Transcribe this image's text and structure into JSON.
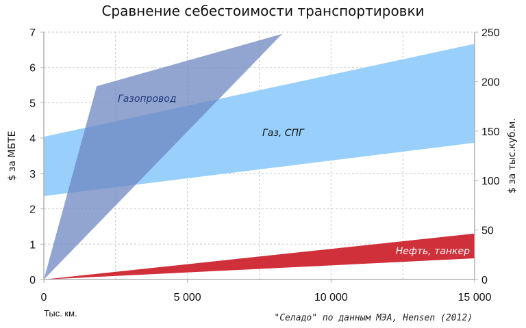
{
  "chart_data": {
    "type": "area",
    "title": "Сравнение себестоимости транспортировки",
    "xlabel": "Тыс. км.",
    "ylabel": "$ за МБТЕ",
    "y2label": "$ за тыс.куб.м.",
    "xlim": [
      0,
      15000
    ],
    "ylim": [
      0,
      7
    ],
    "y2lim": [
      0,
      250
    ],
    "x_ticks": [
      "0",
      "5 000",
      "10 000",
      "15 000"
    ],
    "x_tick_values": [
      0,
      5000,
      10000,
      15000
    ],
    "y_ticks": [
      "0",
      "1",
      "2",
      "3",
      "4",
      "5",
      "6",
      "7"
    ],
    "y2_ticks": [
      "0",
      "50",
      "100",
      "150",
      "200",
      "250"
    ],
    "grid": true,
    "source": "\"Селадо\" по данным МЭА, Hensen (2012)",
    "series": [
      {
        "name": "Газ, СПГ",
        "color": "#99d0fb",
        "upper": [
          [
            0,
            4.04
          ],
          [
            15000,
            6.67
          ]
        ],
        "lower": [
          [
            0,
            2.36
          ],
          [
            15000,
            3.87
          ]
        ]
      },
      {
        "name": "Газопровод",
        "color": "#6e87c2",
        "polygon": [
          [
            0,
            0
          ],
          [
            1840,
            5.47
          ],
          [
            8300,
            6.95
          ],
          [
            0,
            0
          ]
        ]
      },
      {
        "name": "Нефть, танкер",
        "color": "#d0303a",
        "upper": [
          [
            0,
            0
          ],
          [
            15000,
            1.3
          ]
        ],
        "lower": [
          [
            0,
            0
          ],
          [
            15000,
            0.6
          ]
        ]
      }
    ]
  }
}
